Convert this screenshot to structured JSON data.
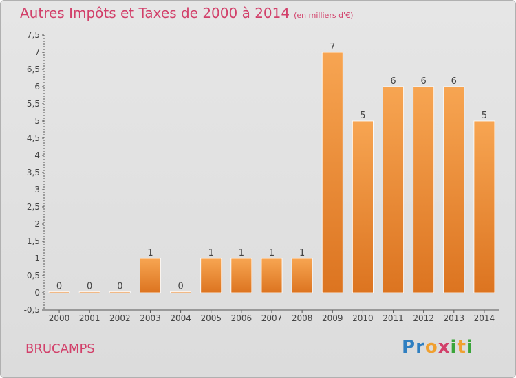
{
  "title": "Autres Impôts et Taxes de 2000 à 2014",
  "unit": "(en milliers d'€)",
  "commune": "BRUCAMPS",
  "logo": {
    "letters": [
      "P",
      "r",
      "o",
      "x",
      "i",
      "t",
      "i"
    ],
    "colors": [
      "#2f7fc1",
      "#2f7fc1",
      "#f0a030",
      "#d2406a",
      "#3aa53a",
      "#f0a030",
      "#3aa53a"
    ]
  },
  "chart_data": {
    "type": "bar",
    "title": "Autres Impôts et Taxes de 2000 à 2014",
    "xlabel": "",
    "ylabel": "",
    "categories": [
      "2000",
      "2001",
      "2002",
      "2003",
      "2004",
      "2005",
      "2006",
      "2007",
      "2008",
      "2009",
      "2010",
      "2011",
      "2012",
      "2013",
      "2014"
    ],
    "values": [
      0,
      0,
      0,
      1,
      0,
      1,
      1,
      1,
      1,
      7,
      5,
      6,
      6,
      6,
      5
    ],
    "data_labels": [
      "0",
      "0",
      "0",
      "1",
      "0",
      "1",
      "1",
      "1",
      "1",
      "7",
      "5",
      "6",
      "6",
      "6",
      "5"
    ],
    "yticks": [
      "-0,5",
      "0",
      "0,5",
      "1",
      "1,5",
      "2",
      "2,5",
      "3",
      "3,5",
      "4",
      "4,5",
      "5",
      "5,5",
      "6",
      "6,5",
      "7",
      "7,5"
    ],
    "ylim": [
      -0.5,
      7.5
    ],
    "grid": false,
    "bar_color": "#f0913a"
  }
}
